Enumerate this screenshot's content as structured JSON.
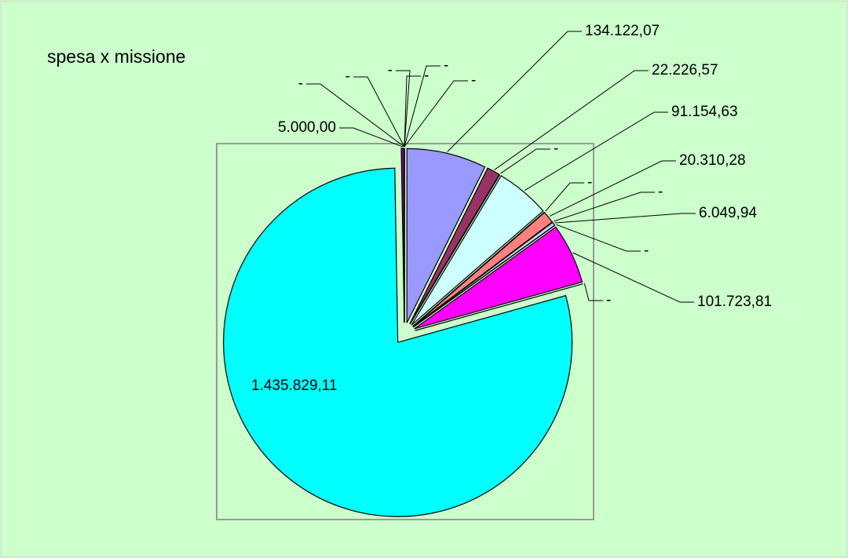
{
  "chart_data": {
    "type": "pie",
    "title": "spesa x missione",
    "values": [
      0,
      0,
      0,
      134122.07,
      22226.57,
      0,
      91154.63,
      0,
      20310.28,
      0,
      6049.94,
      0,
      101723.81,
      0,
      1435829.11,
      5000,
      0,
      0,
      0
    ],
    "value_labels": [
      "-",
      "-",
      "-",
      "134.122,07",
      "22.226,57",
      "-",
      "91.154,63",
      "-",
      "20.310,28",
      "-",
      "6.049,94",
      "-",
      "101.723,81",
      "-",
      "1.435.829,11",
      "5.000,00",
      "-",
      "-",
      "-"
    ],
    "colors": [
      "#9999ff",
      "#993366",
      "#ffffcc",
      "#9999ff",
      "#993366",
      "#ffffcc",
      "#ccffff",
      "#660066",
      "#ff8080",
      "#0066cc",
      "#ccccff",
      "#000080",
      "#ff00ff",
      "#ffff00",
      "#00ffff",
      "#800080",
      "#800000",
      "#008080",
      "#0000ff"
    ]
  }
}
